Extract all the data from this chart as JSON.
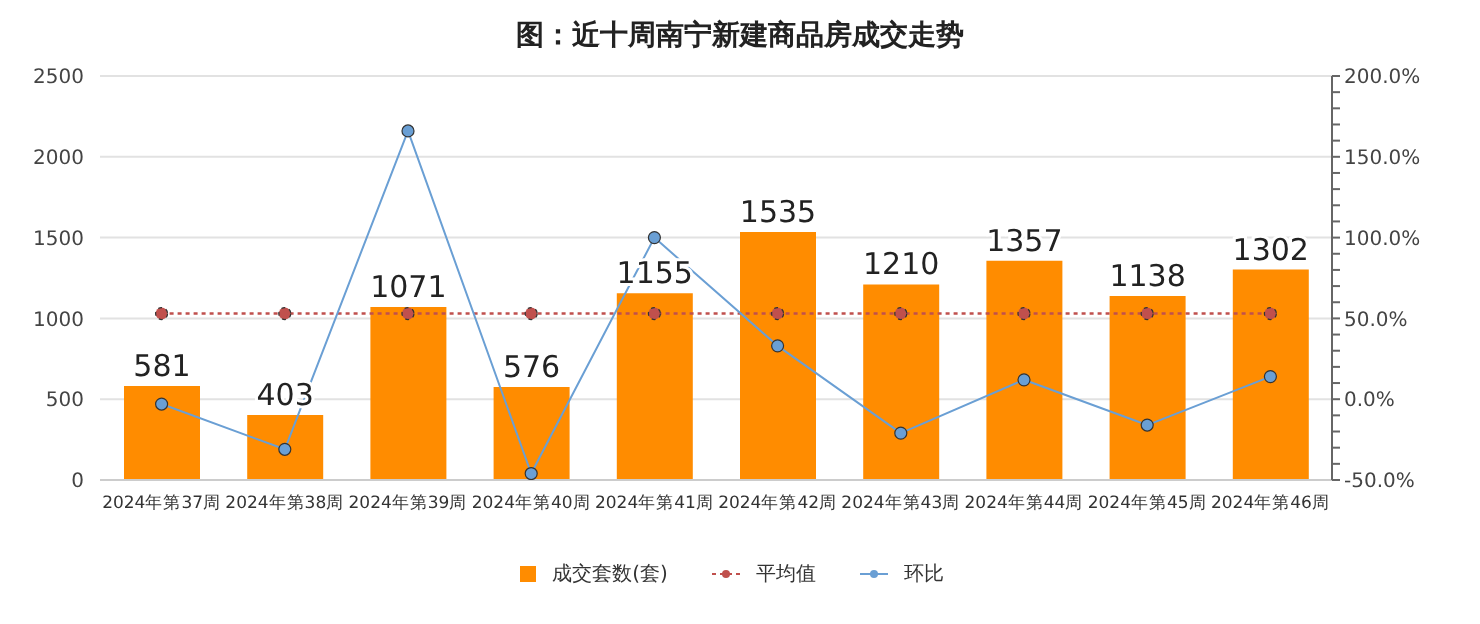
{
  "chart_data": {
    "type": "bar",
    "title": "图：近十周南宁新建商品房成交走势",
    "categories": [
      "2024年第37周",
      "2024年第38周",
      "2024年第39周",
      "2024年第40周",
      "2024年第41周",
      "2024年第42周",
      "2024年第43周",
      "2024年第44周",
      "2024年第45周",
      "2024年第46周"
    ],
    "series": [
      {
        "name": "成交套数(套)",
        "color": "#ff8c00",
        "values": [
          581,
          403,
          1071,
          576,
          1155,
          1535,
          1210,
          1357,
          1138,
          1302
        ],
        "value_labels": [
          "581",
          "403",
          "1071",
          "576",
          "1155",
          "1535",
          "1210",
          "1357",
          "1138",
          "1302"
        ]
      },
      {
        "name": "平均值",
        "type": "line",
        "color": "#c0504d",
        "line_style": "dotted",
        "values": [
          1030,
          1030,
          1030,
          1030,
          1030,
          1030,
          1030,
          1030,
          1030,
          1030
        ]
      },
      {
        "name": "环比",
        "type": "line",
        "color": "#6a9fd4",
        "axis": "y2",
        "line_style": "solid",
        "values": [
          -3,
          -31,
          166,
          -46,
          100,
          33,
          -21,
          12,
          -16,
          14
        ]
      }
    ],
    "ylim": [
      0,
      2500
    ],
    "yticks": [
      0,
      500,
      1000,
      1500,
      2000,
      2500
    ],
    "y2lim": [
      -50,
      200
    ],
    "y2ticks": [
      {
        "value": -50,
        "label": "-50.0%"
      },
      {
        "value": -40,
        "label": null
      },
      {
        "value": -30,
        "label": null
      },
      {
        "value": -20,
        "label": null
      },
      {
        "value": -10,
        "label": null
      },
      {
        "value": 0,
        "label": "0.0%"
      },
      {
        "value": 10,
        "label": null
      },
      {
        "value": 20,
        "label": null
      },
      {
        "value": 30,
        "label": null
      },
      {
        "value": 40,
        "label": null
      },
      {
        "value": 50,
        "label": "50.0%"
      },
      {
        "value": 60,
        "label": null
      },
      {
        "value": 70,
        "label": null
      },
      {
        "value": 80,
        "label": null
      },
      {
        "value": 90,
        "label": null
      },
      {
        "value": 100,
        "label": "100.0%"
      },
      {
        "value": 110,
        "label": null
      },
      {
        "value": 120,
        "label": null
      },
      {
        "value": 130,
        "label": null
      },
      {
        "value": 140,
        "label": null
      },
      {
        "value": 150,
        "label": "150.0%"
      },
      {
        "value": 160,
        "label": null
      },
      {
        "value": 170,
        "label": null
      },
      {
        "value": 180,
        "label": null
      },
      {
        "value": 190,
        "label": null
      },
      {
        "value": 200,
        "label": "200.0%"
      }
    ],
    "grid": "y",
    "legend": "bottom",
    "marker": "circle"
  }
}
